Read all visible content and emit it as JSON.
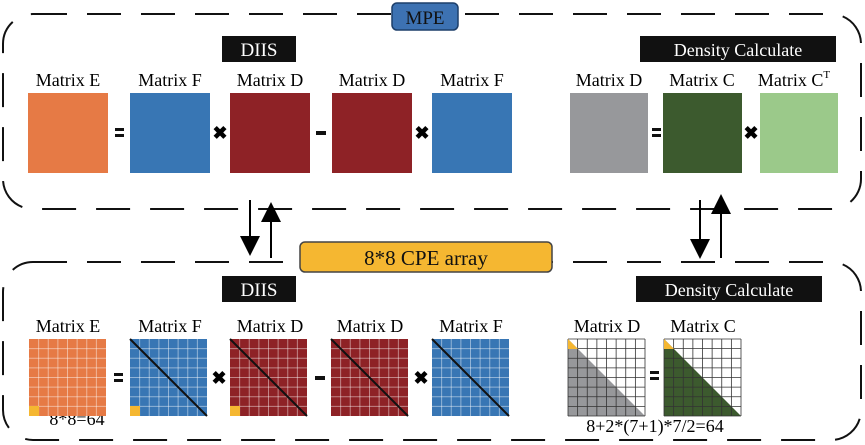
{
  "mpe_label": "MPE",
  "cpe_label": "8*8 CPE array",
  "colors": {
    "E": "#e67a45",
    "F": "#3876b4",
    "D": "#8e2226",
    "Dgray": "#97989b",
    "C": "#3c5a2e",
    "CT": "#9bc98a",
    "highlight": "#f5b731",
    "mpe_bg": "#3d72b2",
    "cpe_bg": "#f5b731"
  },
  "top": {
    "diis_title": "DIIS",
    "density_title": "Density Calculate",
    "diis_labels": [
      "Matrix E",
      "Matrix F",
      "Matrix D",
      "Matrix D",
      "Matrix F"
    ],
    "density_labels": [
      "Matrix D",
      "Matrix C",
      "Matrix C"
    ],
    "transpose_sup": "T"
  },
  "bottom": {
    "diis_title": "DIIS",
    "density_title": "Density Calculate",
    "diis_labels": [
      "Matrix E",
      "Matrix F",
      "Matrix D",
      "Matrix D",
      "Matrix F"
    ],
    "density_labels": [
      "Matrix D",
      "Matrix C"
    ],
    "diis_formula": "8*8=64",
    "density_formula": "8+2*(7+1)*7/2=64"
  }
}
